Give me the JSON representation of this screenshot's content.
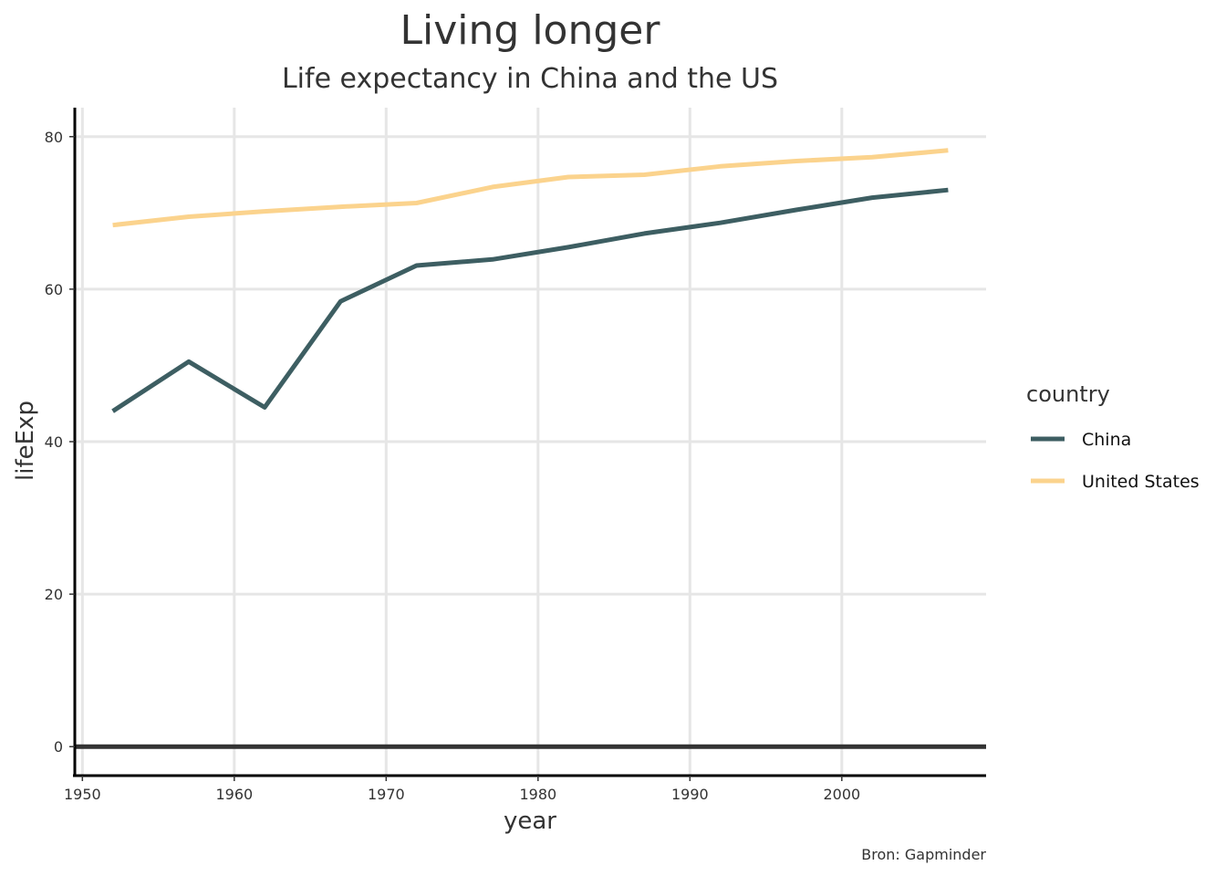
{
  "chart_data": {
    "type": "line",
    "title": "Living longer",
    "subtitle": "Life expectancy in China and the US",
    "xlabel": "year",
    "ylabel": "lifeExp",
    "caption": "Bron: Gapminder",
    "xlim": [
      1949.5,
      2009.5
    ],
    "ylim": [
      -3.8,
      83.8
    ],
    "xticks": [
      1950,
      1960,
      1970,
      1980,
      1990,
      2000
    ],
    "yticks": [
      0,
      20,
      40,
      60,
      80
    ],
    "grid": true,
    "legend": {
      "title": "country",
      "position": "right"
    },
    "x": [
      1952,
      1957,
      1962,
      1967,
      1972,
      1977,
      1982,
      1987,
      1992,
      1997,
      2002,
      2007
    ],
    "series": [
      {
        "name": "China",
        "color": "#3d5e62",
        "values": [
          44.0,
          50.5,
          44.5,
          58.4,
          63.1,
          63.9,
          65.5,
          67.3,
          68.7,
          70.4,
          72.0,
          73.0
        ]
      },
      {
        "name": "United States",
        "color": "#fbd38d",
        "values": [
          68.4,
          69.5,
          70.2,
          70.8,
          71.3,
          73.4,
          74.7,
          75.0,
          76.1,
          76.8,
          77.3,
          78.2
        ]
      }
    ]
  }
}
